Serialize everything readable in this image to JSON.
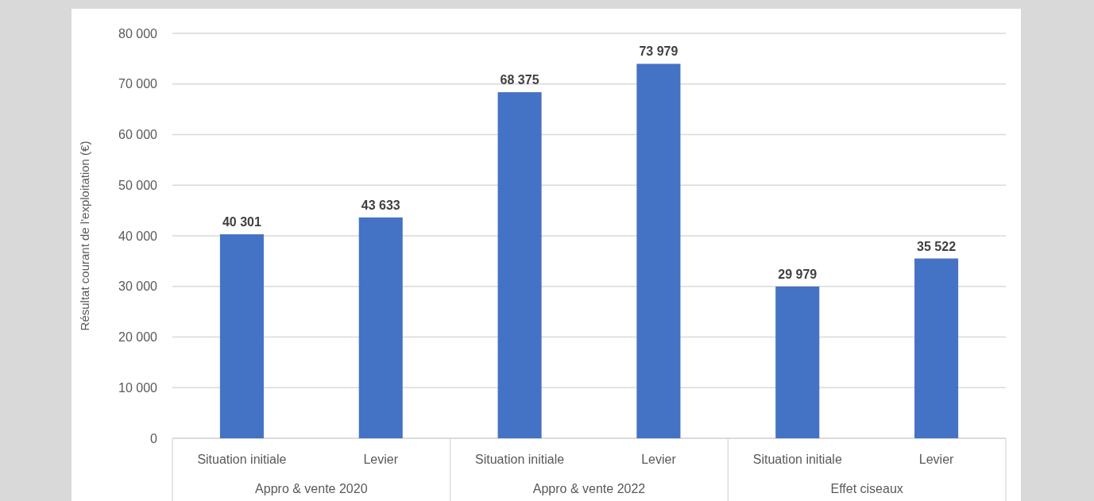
{
  "chart_data": {
    "type": "bar",
    "ylabel": "Résultat courant de l'exploitation (€)",
    "categories": [
      "Situation initiale",
      "Levier",
      "Situation initiale",
      "Levier",
      "Situation initiale",
      "Levier"
    ],
    "values": [
      40301,
      43633,
      68375,
      73979,
      29979,
      35522
    ],
    "color": "#4472c4",
    "value_labels": [
      "40 301",
      "43 633",
      "68 375",
      "73 979",
      "29 979",
      "35 522"
    ],
    "ylim": [
      0,
      80000
    ],
    "yticks": [
      0,
      {
        "value": 10000,
        "label": "10 000"
      },
      {
        "value": 20000,
        "label": "20 000"
      },
      {
        "value": 30000,
        "label": "30 000"
      },
      {
        "value": 40000,
        "label": "40 000"
      },
      {
        "value": 50000,
        "label": "50 000"
      },
      {
        "value": 60000,
        "label": "60 000"
      },
      {
        "value": 70000,
        "label": "70 000"
      },
      {
        "value": 80000,
        "label": "80 000"
      }
    ],
    "grid": "y",
    "annotations": [
      "Appro & vente 2020",
      "Appro & vente 2022",
      "Effet ciseaux"
    ]
  }
}
